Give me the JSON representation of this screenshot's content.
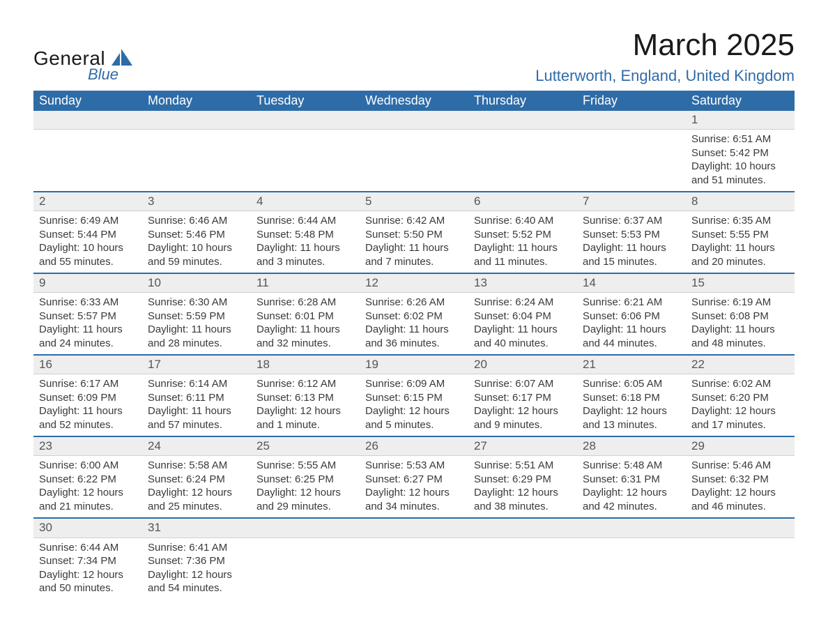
{
  "brand": {
    "top": "General",
    "bottom": "Blue",
    "sail_color": "#2e6ca8"
  },
  "title": "March 2025",
  "location": "Lutterworth, England, United Kingdom",
  "colors": {
    "header_bg": "#2e6ca8",
    "header_text": "#ffffff",
    "daynum_bg": "#eeeeee",
    "row_border": "#2e6ca8",
    "body_text": "#3a3a3a"
  },
  "weekdays": [
    "Sunday",
    "Monday",
    "Tuesday",
    "Wednesday",
    "Thursday",
    "Friday",
    "Saturday"
  ],
  "weeks": [
    [
      null,
      null,
      null,
      null,
      null,
      null,
      {
        "n": "1",
        "sr": "Sunrise: 6:51 AM",
        "ss": "Sunset: 5:42 PM",
        "d1": "Daylight: 10 hours",
        "d2": "and 51 minutes."
      }
    ],
    [
      {
        "n": "2",
        "sr": "Sunrise: 6:49 AM",
        "ss": "Sunset: 5:44 PM",
        "d1": "Daylight: 10 hours",
        "d2": "and 55 minutes."
      },
      {
        "n": "3",
        "sr": "Sunrise: 6:46 AM",
        "ss": "Sunset: 5:46 PM",
        "d1": "Daylight: 10 hours",
        "d2": "and 59 minutes."
      },
      {
        "n": "4",
        "sr": "Sunrise: 6:44 AM",
        "ss": "Sunset: 5:48 PM",
        "d1": "Daylight: 11 hours",
        "d2": "and 3 minutes."
      },
      {
        "n": "5",
        "sr": "Sunrise: 6:42 AM",
        "ss": "Sunset: 5:50 PM",
        "d1": "Daylight: 11 hours",
        "d2": "and 7 minutes."
      },
      {
        "n": "6",
        "sr": "Sunrise: 6:40 AM",
        "ss": "Sunset: 5:52 PM",
        "d1": "Daylight: 11 hours",
        "d2": "and 11 minutes."
      },
      {
        "n": "7",
        "sr": "Sunrise: 6:37 AM",
        "ss": "Sunset: 5:53 PM",
        "d1": "Daylight: 11 hours",
        "d2": "and 15 minutes."
      },
      {
        "n": "8",
        "sr": "Sunrise: 6:35 AM",
        "ss": "Sunset: 5:55 PM",
        "d1": "Daylight: 11 hours",
        "d2": "and 20 minutes."
      }
    ],
    [
      {
        "n": "9",
        "sr": "Sunrise: 6:33 AM",
        "ss": "Sunset: 5:57 PM",
        "d1": "Daylight: 11 hours",
        "d2": "and 24 minutes."
      },
      {
        "n": "10",
        "sr": "Sunrise: 6:30 AM",
        "ss": "Sunset: 5:59 PM",
        "d1": "Daylight: 11 hours",
        "d2": "and 28 minutes."
      },
      {
        "n": "11",
        "sr": "Sunrise: 6:28 AM",
        "ss": "Sunset: 6:01 PM",
        "d1": "Daylight: 11 hours",
        "d2": "and 32 minutes."
      },
      {
        "n": "12",
        "sr": "Sunrise: 6:26 AM",
        "ss": "Sunset: 6:02 PM",
        "d1": "Daylight: 11 hours",
        "d2": "and 36 minutes."
      },
      {
        "n": "13",
        "sr": "Sunrise: 6:24 AM",
        "ss": "Sunset: 6:04 PM",
        "d1": "Daylight: 11 hours",
        "d2": "and 40 minutes."
      },
      {
        "n": "14",
        "sr": "Sunrise: 6:21 AM",
        "ss": "Sunset: 6:06 PM",
        "d1": "Daylight: 11 hours",
        "d2": "and 44 minutes."
      },
      {
        "n": "15",
        "sr": "Sunrise: 6:19 AM",
        "ss": "Sunset: 6:08 PM",
        "d1": "Daylight: 11 hours",
        "d2": "and 48 minutes."
      }
    ],
    [
      {
        "n": "16",
        "sr": "Sunrise: 6:17 AM",
        "ss": "Sunset: 6:09 PM",
        "d1": "Daylight: 11 hours",
        "d2": "and 52 minutes."
      },
      {
        "n": "17",
        "sr": "Sunrise: 6:14 AM",
        "ss": "Sunset: 6:11 PM",
        "d1": "Daylight: 11 hours",
        "d2": "and 57 minutes."
      },
      {
        "n": "18",
        "sr": "Sunrise: 6:12 AM",
        "ss": "Sunset: 6:13 PM",
        "d1": "Daylight: 12 hours",
        "d2": "and 1 minute."
      },
      {
        "n": "19",
        "sr": "Sunrise: 6:09 AM",
        "ss": "Sunset: 6:15 PM",
        "d1": "Daylight: 12 hours",
        "d2": "and 5 minutes."
      },
      {
        "n": "20",
        "sr": "Sunrise: 6:07 AM",
        "ss": "Sunset: 6:17 PM",
        "d1": "Daylight: 12 hours",
        "d2": "and 9 minutes."
      },
      {
        "n": "21",
        "sr": "Sunrise: 6:05 AM",
        "ss": "Sunset: 6:18 PM",
        "d1": "Daylight: 12 hours",
        "d2": "and 13 minutes."
      },
      {
        "n": "22",
        "sr": "Sunrise: 6:02 AM",
        "ss": "Sunset: 6:20 PM",
        "d1": "Daylight: 12 hours",
        "d2": "and 17 minutes."
      }
    ],
    [
      {
        "n": "23",
        "sr": "Sunrise: 6:00 AM",
        "ss": "Sunset: 6:22 PM",
        "d1": "Daylight: 12 hours",
        "d2": "and 21 minutes."
      },
      {
        "n": "24",
        "sr": "Sunrise: 5:58 AM",
        "ss": "Sunset: 6:24 PM",
        "d1": "Daylight: 12 hours",
        "d2": "and 25 minutes."
      },
      {
        "n": "25",
        "sr": "Sunrise: 5:55 AM",
        "ss": "Sunset: 6:25 PM",
        "d1": "Daylight: 12 hours",
        "d2": "and 29 minutes."
      },
      {
        "n": "26",
        "sr": "Sunrise: 5:53 AM",
        "ss": "Sunset: 6:27 PM",
        "d1": "Daylight: 12 hours",
        "d2": "and 34 minutes."
      },
      {
        "n": "27",
        "sr": "Sunrise: 5:51 AM",
        "ss": "Sunset: 6:29 PM",
        "d1": "Daylight: 12 hours",
        "d2": "and 38 minutes."
      },
      {
        "n": "28",
        "sr": "Sunrise: 5:48 AM",
        "ss": "Sunset: 6:31 PM",
        "d1": "Daylight: 12 hours",
        "d2": "and 42 minutes."
      },
      {
        "n": "29",
        "sr": "Sunrise: 5:46 AM",
        "ss": "Sunset: 6:32 PM",
        "d1": "Daylight: 12 hours",
        "d2": "and 46 minutes."
      }
    ],
    [
      {
        "n": "30",
        "sr": "Sunrise: 6:44 AM",
        "ss": "Sunset: 7:34 PM",
        "d1": "Daylight: 12 hours",
        "d2": "and 50 minutes."
      },
      {
        "n": "31",
        "sr": "Sunrise: 6:41 AM",
        "ss": "Sunset: 7:36 PM",
        "d1": "Daylight: 12 hours",
        "d2": "and 54 minutes."
      },
      null,
      null,
      null,
      null,
      null
    ]
  ]
}
